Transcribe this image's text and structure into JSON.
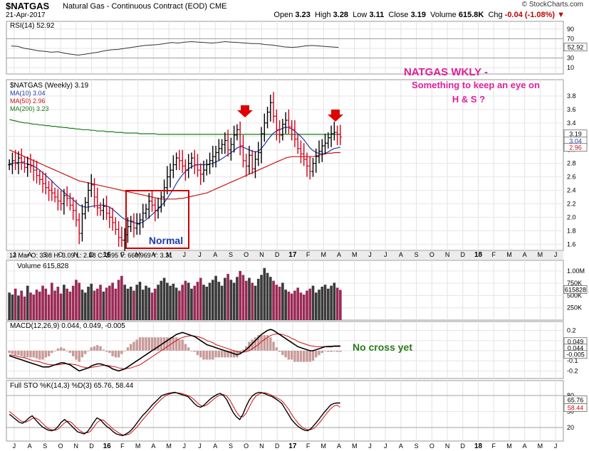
{
  "header": {
    "symbol": "$NATGAS",
    "name": "Natural Gas - Continuous Contract (EOD)",
    "exchange": "CME",
    "date": "21-Apr-2017",
    "watermark": "© StockCharts.com",
    "open_label": "Open",
    "open": "3.23",
    "high_label": "High",
    "high": "3.28",
    "low_label": "Low",
    "low": "3.11",
    "close_label": "Close",
    "close": "3.19",
    "volume_label": "Volume",
    "volume": "615.8K",
    "chg_label": "Chg",
    "chg": "-0.04 (-1.08%)"
  },
  "colors": {
    "up_bar": "#000000",
    "down_bar": "#d0021b",
    "ma10": "#1f3aa8",
    "ma50": "#cc1111",
    "ma200": "#1a7a1a",
    "annotation_pink": "#e0209a",
    "annotation_green": "#2a7a1a",
    "annotation_blue": "#1f3aa8",
    "arrow": "#e00000",
    "volume_up": "#3a3a3a",
    "volume_down": "#9a2a55"
  },
  "chart_data": [
    {
      "id": "rsi",
      "type": "line",
      "label": "RSI(14) 52.92",
      "ylim": [
        0,
        100
      ],
      "yticks": [
        90,
        70,
        50,
        30,
        10
      ],
      "last_label": "52.92",
      "series": [
        {
          "name": "RSI(14)",
          "values": [
            55,
            54,
            50,
            48,
            45,
            44,
            42,
            43,
            40,
            38,
            36,
            38,
            40,
            42,
            45,
            47,
            48,
            50,
            52,
            54,
            56,
            57,
            58,
            60,
            62,
            61,
            63,
            64,
            63,
            62,
            61,
            62,
            64,
            63,
            62,
            61,
            60,
            60,
            58,
            57,
            55,
            53,
            52,
            53,
            55,
            56,
            55,
            54,
            53,
            52
          ]
        }
      ]
    },
    {
      "id": "price",
      "type": "ohlc",
      "label": "$NATGAS (Weekly) 3.19",
      "ylim": [
        1.55,
        4.0
      ],
      "yticks": [
        3.8,
        3.6,
        3.4,
        3.2,
        3.0,
        2.8,
        2.6,
        2.4,
        2.2,
        2.0,
        1.8,
        1.6
      ],
      "x_labels": [
        "J",
        "A",
        "S",
        "O",
        "N",
        "D",
        "16",
        "F",
        "M",
        "A",
        "M",
        "J",
        "J",
        "A",
        "S",
        "O",
        "N",
        "D",
        "17",
        "F",
        "M",
        "A",
        "M",
        "J",
        "J",
        "A",
        "S",
        "O",
        "N",
        "D",
        "18",
        "F",
        "M",
        "A",
        "M",
        "J"
      ],
      "right_labels": [
        "3.19",
        "3.04",
        "2.96"
      ],
      "legend": [
        "MA(10) 3.04",
        "MA(50) 2.96",
        "MA(200) 3.23"
      ],
      "closes": [
        2.78,
        2.84,
        2.8,
        2.88,
        2.82,
        2.74,
        2.78,
        2.76,
        2.7,
        2.62,
        2.56,
        2.5,
        2.44,
        2.4,
        2.36,
        2.3,
        2.24,
        2.2,
        2.32,
        2.28,
        2.18,
        2.1,
        1.96,
        1.76,
        2.05,
        2.22,
        2.4,
        2.48,
        2.3,
        2.14,
        2.1,
        2.16,
        2.06,
        2.0,
        1.92,
        1.82,
        1.7,
        1.66,
        1.74,
        1.86,
        1.94,
        1.84,
        1.9,
        1.96,
        2.06,
        2.12,
        2.24,
        2.18,
        2.1,
        2.15,
        2.3,
        2.44,
        2.6,
        2.7,
        2.78,
        2.88,
        2.84,
        2.76,
        2.7,
        2.8,
        2.88,
        2.78,
        2.7,
        2.64,
        2.7,
        2.78,
        2.84,
        2.9,
        2.96,
        3.02,
        3.08,
        3.14,
        3.0,
        3.08,
        3.22,
        3.3,
        3.06,
        2.84,
        2.76,
        2.92,
        2.72,
        2.86,
        2.96,
        3.24,
        3.4,
        3.56,
        3.7,
        3.5,
        3.3,
        3.22,
        3.38,
        3.44,
        3.34,
        3.3,
        3.16,
        3.02,
        2.94,
        2.86,
        2.76,
        2.68,
        2.8,
        2.9,
        2.98,
        3.06,
        3.1,
        3.18,
        3.24,
        3.26,
        3.23,
        3.19
      ],
      "ma10": [
        2.8,
        2.8,
        2.81,
        2.81,
        2.81,
        2.8,
        2.79,
        2.78,
        2.76,
        2.73,
        2.7,
        2.66,
        2.62,
        2.58,
        2.54,
        2.49,
        2.45,
        2.41,
        2.37,
        2.33,
        2.3,
        2.26,
        2.22,
        2.18,
        2.16,
        2.15,
        2.15,
        2.16,
        2.17,
        2.17,
        2.18,
        2.18,
        2.17,
        2.15,
        2.12,
        2.08,
        2.04,
        2.0,
        1.97,
        1.95,
        1.94,
        1.92,
        1.91,
        1.91,
        1.93,
        1.96,
        2.0,
        2.04,
        2.08,
        2.12,
        2.17,
        2.22,
        2.28,
        2.35,
        2.42,
        2.5,
        2.57,
        2.63,
        2.68,
        2.72,
        2.75,
        2.77,
        2.78,
        2.78,
        2.78,
        2.78,
        2.79,
        2.8,
        2.82,
        2.84,
        2.87,
        2.9,
        2.93,
        2.96,
        2.99,
        3.03,
        3.05,
        3.04,
        3.02,
        3.0,
        2.98,
        2.97,
        2.98,
        3.02,
        3.08,
        3.14,
        3.2,
        3.25,
        3.28,
        3.3,
        3.32,
        3.34,
        3.33,
        3.31,
        3.28,
        3.24,
        3.2,
        3.15,
        3.09,
        3.03,
        2.99,
        2.96,
        2.95,
        2.94,
        2.95,
        2.97,
        3.0,
        3.02,
        3.03,
        3.04
      ],
      "ma50": [
        3.0,
        2.98,
        2.96,
        2.94,
        2.92,
        2.9,
        2.88,
        2.86,
        2.84,
        2.82,
        2.8,
        2.78,
        2.76,
        2.74,
        2.72,
        2.7,
        2.68,
        2.66,
        2.64,
        2.62,
        2.6,
        2.58,
        2.56,
        2.54,
        2.53,
        2.52,
        2.51,
        2.5,
        2.49,
        2.48,
        2.47,
        2.46,
        2.45,
        2.44,
        2.43,
        2.42,
        2.41,
        2.4,
        2.39,
        2.38,
        2.37,
        2.36,
        2.35,
        2.34,
        2.33,
        2.32,
        2.31,
        2.3,
        2.29,
        2.28,
        2.27,
        2.27,
        2.27,
        2.27,
        2.27,
        2.27,
        2.28,
        2.28,
        2.29,
        2.3,
        2.31,
        2.32,
        2.33,
        2.34,
        2.35,
        2.36,
        2.38,
        2.4,
        2.42,
        2.44,
        2.46,
        2.48,
        2.5,
        2.52,
        2.54,
        2.56,
        2.58,
        2.6,
        2.62,
        2.64,
        2.66,
        2.68,
        2.7,
        2.72,
        2.74,
        2.76,
        2.78,
        2.8,
        2.82,
        2.84,
        2.86,
        2.88,
        2.89,
        2.9,
        2.9,
        2.9,
        2.9,
        2.9,
        2.9,
        2.9,
        2.9,
        2.91,
        2.92,
        2.93,
        2.94,
        2.95,
        2.95,
        2.96,
        2.96,
        2.96
      ],
      "ma200": [
        3.45,
        3.44,
        3.43,
        3.42,
        3.41,
        3.4,
        3.4,
        3.39,
        3.38,
        3.38,
        3.37,
        3.37,
        3.36,
        3.36,
        3.35,
        3.35,
        3.34,
        3.34,
        3.33,
        3.33,
        3.32,
        3.32,
        3.31,
        3.31,
        3.3,
        3.3,
        3.3,
        3.29,
        3.29,
        3.28,
        3.28,
        3.28,
        3.27,
        3.27,
        3.27,
        3.26,
        3.26,
        3.26,
        3.25,
        3.25,
        3.25,
        3.25,
        3.25,
        3.24,
        3.24,
        3.24,
        3.24,
        3.24,
        3.24,
        3.23,
        3.23,
        3.23,
        3.23,
        3.23,
        3.23,
        3.23,
        3.23,
        3.23,
        3.23,
        3.23,
        3.23,
        3.23,
        3.23,
        3.23,
        3.23,
        3.23,
        3.23,
        3.23,
        3.23,
        3.23,
        3.23,
        3.23,
        3.23,
        3.23,
        3.23,
        3.23,
        3.23,
        3.23,
        3.23,
        3.23,
        3.23,
        3.23,
        3.23,
        3.23,
        3.23,
        3.23,
        3.23,
        3.23,
        3.23,
        3.23,
        3.23,
        3.23,
        3.23,
        3.23,
        3.23,
        3.23,
        3.23,
        3.23,
        3.23,
        3.23,
        3.23,
        3.23,
        3.23,
        3.23,
        3.23,
        3.23,
        3.23,
        3.23,
        3.23,
        3.23
      ]
    },
    {
      "id": "volume",
      "type": "bar",
      "label": "Volume 615,828",
      "yticks_labels": [
        "1.00M",
        "750K",
        "500K",
        "250K"
      ],
      "yticks": [
        1000,
        750,
        500,
        250
      ],
      "right_label": "615828",
      "values": [
        560,
        520,
        640,
        500,
        600,
        480,
        700,
        560,
        520,
        620,
        580,
        700,
        640,
        520,
        760,
        600,
        680,
        540,
        720,
        640,
        580,
        700,
        820,
        760,
        620,
        560,
        680,
        740,
        600,
        640,
        720,
        580,
        660,
        700,
        760,
        640,
        820,
        900,
        720,
        640,
        680,
        600,
        720,
        780,
        620,
        700,
        660,
        560,
        640,
        720,
        800,
        860,
        760,
        700,
        740,
        660,
        600,
        720,
        800,
        760,
        640,
        700,
        780,
        860,
        720,
        680,
        760,
        820,
        900,
        780,
        700,
        860,
        940,
        820,
        760,
        880,
        1000,
        920,
        800,
        860,
        760,
        700,
        840,
        920,
        1060,
        960,
        880,
        800,
        720,
        680,
        760,
        620,
        580,
        540,
        600,
        660,
        560,
        520,
        600,
        640,
        700,
        560,
        620,
        680,
        720,
        640,
        700,
        760,
        660,
        615
      ]
    },
    {
      "id": "macd",
      "type": "line",
      "label": "MACD(12,26,9) 0.044, 0.049, -0.005",
      "yticks": [
        0.2,
        0.1,
        0.0,
        -0.1,
        -0.2
      ],
      "ylim": [
        -0.26,
        0.26
      ],
      "right_labels": [
        "0.049",
        "0.044",
        "-0.005"
      ],
      "series": [
        {
          "name": "MACD",
          "values": [
            -0.05,
            -0.06,
            -0.07,
            -0.08,
            -0.09,
            -0.1,
            -0.11,
            -0.12,
            -0.13,
            -0.14,
            -0.15,
            -0.16,
            -0.16,
            -0.16,
            -0.15,
            -0.14,
            -0.13,
            -0.12,
            -0.12,
            -0.13,
            -0.14,
            -0.16,
            -0.18,
            -0.2,
            -0.19,
            -0.18,
            -0.17,
            -0.15,
            -0.14,
            -0.13,
            -0.13,
            -0.14,
            -0.15,
            -0.16,
            -0.18,
            -0.19,
            -0.2,
            -0.19,
            -0.18,
            -0.16,
            -0.14,
            -0.12,
            -0.1,
            -0.08,
            -0.06,
            -0.04,
            -0.02,
            0.0,
            0.02,
            0.04,
            0.06,
            0.08,
            0.1,
            0.12,
            0.14,
            0.16,
            0.17,
            0.18,
            0.17,
            0.16,
            0.15,
            0.14,
            0.12,
            0.1,
            0.08,
            0.06,
            0.05,
            0.04,
            0.03,
            0.02,
            0.01,
            0.0,
            -0.01,
            -0.02,
            -0.03,
            -0.04,
            -0.03,
            -0.01,
            0.01,
            0.04,
            0.07,
            0.1,
            0.13,
            0.16,
            0.18,
            0.2,
            0.21,
            0.2,
            0.18,
            0.16,
            0.14,
            0.12,
            0.1,
            0.08,
            0.06,
            0.04,
            0.03,
            0.02,
            0.01,
            0.0,
            0.0,
            0.01,
            0.02,
            0.03,
            0.04,
            0.04,
            0.04,
            0.045,
            0.044,
            0.044
          ]
        },
        {
          "name": "Signal",
          "values": [
            -0.04,
            -0.045,
            -0.05,
            -0.06,
            -0.065,
            -0.07,
            -0.08,
            -0.09,
            -0.1,
            -0.105,
            -0.11,
            -0.12,
            -0.13,
            -0.135,
            -0.14,
            -0.14,
            -0.14,
            -0.135,
            -0.13,
            -0.13,
            -0.13,
            -0.135,
            -0.14,
            -0.15,
            -0.16,
            -0.165,
            -0.17,
            -0.165,
            -0.16,
            -0.155,
            -0.15,
            -0.145,
            -0.145,
            -0.15,
            -0.155,
            -0.16,
            -0.17,
            -0.175,
            -0.18,
            -0.175,
            -0.17,
            -0.16,
            -0.15,
            -0.14,
            -0.12,
            -0.1,
            -0.08,
            -0.06,
            -0.04,
            -0.02,
            0.0,
            0.02,
            0.04,
            0.06,
            0.08,
            0.1,
            0.12,
            0.13,
            0.14,
            0.145,
            0.15,
            0.145,
            0.14,
            0.13,
            0.12,
            0.1,
            0.09,
            0.08,
            0.06,
            0.05,
            0.04,
            0.03,
            0.02,
            0.01,
            0.0,
            -0.01,
            -0.015,
            -0.015,
            -0.01,
            0.0,
            0.02,
            0.04,
            0.06,
            0.09,
            0.11,
            0.13,
            0.15,
            0.16,
            0.165,
            0.165,
            0.16,
            0.15,
            0.14,
            0.12,
            0.11,
            0.09,
            0.08,
            0.07,
            0.06,
            0.05,
            0.045,
            0.04,
            0.04,
            0.04,
            0.04,
            0.045,
            0.045,
            0.048,
            0.049,
            0.049
          ]
        }
      ]
    },
    {
      "id": "sto",
      "type": "line",
      "label": "Full STO %K(14,3) %D(3) 65.76, 58.44",
      "ylim": [
        0,
        100
      ],
      "yticks": [
        80,
        50,
        20
      ],
      "right_labels": [
        "65.76",
        "58.44"
      ],
      "series": [
        {
          "name": "%K",
          "values": [
            45,
            40,
            35,
            30,
            28,
            32,
            38,
            42,
            35,
            28,
            22,
            18,
            15,
            14,
            16,
            22,
            30,
            35,
            30,
            24,
            18,
            12,
            10,
            8,
            12,
            20,
            30,
            38,
            35,
            28,
            22,
            18,
            12,
            8,
            6,
            5,
            8,
            12,
            18,
            26,
            34,
            42,
            48,
            55,
            62,
            68,
            74,
            80,
            82,
            84,
            85,
            86,
            84,
            82,
            80,
            78,
            72,
            65,
            60,
            58,
            62,
            68,
            74,
            78,
            82,
            84,
            80,
            72,
            60,
            48,
            40,
            35,
            45,
            60,
            72,
            80,
            84,
            86,
            85,
            83,
            80,
            78,
            74,
            70,
            65,
            55,
            45,
            35,
            28,
            22,
            18,
            15,
            14,
            18,
            25,
            32,
            40,
            48,
            55,
            62,
            65,
            66,
            66
          ]
        },
        {
          "name": "%D",
          "values": [
            50,
            45,
            40,
            35,
            31,
            30,
            33,
            37,
            38,
            35,
            29,
            23,
            18,
            16,
            15,
            17,
            23,
            29,
            32,
            30,
            24,
            18,
            13,
            10,
            10,
            13,
            21,
            29,
            34,
            34,
            28,
            23,
            17,
            13,
            9,
            6,
            6,
            8,
            13,
            19,
            26,
            34,
            41,
            48,
            55,
            62,
            68,
            74,
            79,
            82,
            84,
            85,
            85,
            84,
            82,
            80,
            77,
            72,
            66,
            61,
            60,
            63,
            68,
            73,
            78,
            81,
            82,
            79,
            71,
            60,
            49,
            41,
            40,
            47,
            59,
            71,
            79,
            83,
            85,
            85,
            83,
            80,
            77,
            74,
            70,
            63,
            55,
            45,
            36,
            28,
            22,
            18,
            16,
            16,
            19,
            25,
            32,
            40,
            48,
            55,
            60,
            62,
            58
          ]
        }
      ]
    }
  ],
  "panels": {
    "rsi_label": "RSI(14) 52.92",
    "price_label": "$NATGAS (Weekly) 3.19",
    "ma10_label": "MA(10) 3.04",
    "ma50_label": "MA(50) 2.96",
    "ma200_label": "MA(200) 3.23",
    "cursor_readout": "13 Mar O: 3.08  H: 3.09  L: 2.88  C: 2.95  V: 660,969  Y: 3.31",
    "volume_label": "Volume 615,828",
    "macd_label": "MACD(12,26,9) 0.044, 0.049, -0.005",
    "sto_label": "Full STO %K(14,3) %D(3) 65.76, 58.44"
  },
  "annotations": {
    "title_line1": "NATGAS WKLY -",
    "title_line2": "Something to keep an eye on",
    "title_line3": "H & S ?",
    "normal_label": "Normal",
    "no_cross": "No cross yet"
  }
}
